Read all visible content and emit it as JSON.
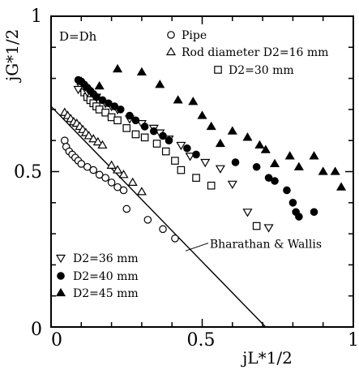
{
  "chart_data": {
    "type": "scatter",
    "xlabel": "jL*1/2",
    "ylabel": "jG*1/2",
    "xlim": [
      0,
      1
    ],
    "ylim": [
      0,
      1
    ],
    "x_ticks": [
      {
        "value": 0,
        "label": "0"
      },
      {
        "value": 0.5,
        "label": "0.5"
      },
      {
        "value": 1,
        "label": "1"
      }
    ],
    "y_ticks": [
      {
        "value": 0,
        "label": "0"
      },
      {
        "value": 0.5,
        "label": "0.5"
      },
      {
        "value": 1,
        "label": "1"
      }
    ],
    "origin_label": "0",
    "condition_text": "D=Dh",
    "grid": false,
    "legend_top": "top-right",
    "legend_bottom": "bottom-left",
    "series": [
      {
        "name": "Pipe",
        "marker": "circle-open",
        "x": [
          0.045,
          0.05,
          0.06,
          0.07,
          0.08,
          0.09,
          0.1,
          0.12,
          0.14,
          0.16,
          0.18,
          0.2,
          0.22,
          0.24,
          0.25,
          0.32,
          0.37,
          0.41
        ],
        "y": [
          0.6,
          0.58,
          0.565,
          0.555,
          0.545,
          0.535,
          0.525,
          0.515,
          0.505,
          0.49,
          0.48,
          0.465,
          0.45,
          0.44,
          0.38,
          0.345,
          0.315,
          0.285
        ]
      },
      {
        "name": "Rod diameter D2=16 mm",
        "marker": "triangle-open",
        "x": [
          0.045,
          0.055,
          0.065,
          0.075,
          0.085,
          0.095,
          0.105,
          0.115,
          0.125,
          0.14,
          0.155,
          0.17,
          0.2,
          0.22,
          0.24,
          0.27,
          0.3
        ],
        "y": [
          0.69,
          0.68,
          0.67,
          0.66,
          0.655,
          0.645,
          0.635,
          0.625,
          0.615,
          0.605,
          0.595,
          0.585,
          0.52,
          0.505,
          0.49,
          0.465,
          0.435
        ]
      },
      {
        "name": "D2=30 mm",
        "marker": "square-open",
        "x": [
          0.1,
          0.11,
          0.12,
          0.13,
          0.14,
          0.15,
          0.16,
          0.18,
          0.2,
          0.22,
          0.25,
          0.28,
          0.31,
          0.35,
          0.38,
          0.41,
          0.43,
          0.48,
          0.53,
          0.68
        ],
        "y": [
          0.77,
          0.755,
          0.74,
          0.73,
          0.72,
          0.71,
          0.7,
          0.69,
          0.675,
          0.665,
          0.64,
          0.62,
          0.61,
          0.59,
          0.565,
          0.535,
          0.505,
          0.48,
          0.455,
          0.325
        ]
      },
      {
        "name": "D2=36 mm",
        "marker": "triangle-down-open",
        "x": [
          0.09,
          0.12,
          0.15,
          0.18,
          0.2,
          0.22,
          0.26,
          0.3,
          0.34,
          0.36,
          0.39,
          0.43,
          0.46,
          0.51,
          0.56,
          0.6,
          0.65,
          0.72
        ],
        "y": [
          0.765,
          0.755,
          0.74,
          0.72,
          0.71,
          0.7,
          0.67,
          0.655,
          0.64,
          0.625,
          0.605,
          0.585,
          0.55,
          0.53,
          0.51,
          0.46,
          0.37,
          0.32
        ]
      },
      {
        "name": "D2=40 mm",
        "marker": "circle-filled",
        "x": [
          0.09,
          0.1,
          0.11,
          0.12,
          0.13,
          0.14,
          0.15,
          0.17,
          0.19,
          0.21,
          0.23,
          0.26,
          0.28,
          0.31,
          0.34,
          0.37,
          0.39,
          0.45,
          0.48,
          0.61,
          0.68,
          0.72,
          0.74,
          0.78,
          0.8,
          0.81,
          0.82,
          0.87
        ],
        "y": [
          0.795,
          0.79,
          0.78,
          0.77,
          0.76,
          0.75,
          0.74,
          0.73,
          0.72,
          0.71,
          0.7,
          0.68,
          0.665,
          0.645,
          0.63,
          0.615,
          0.6,
          0.575,
          0.555,
          0.53,
          0.515,
          0.48,
          0.47,
          0.44,
          0.4,
          0.37,
          0.355,
          0.37
        ]
      },
      {
        "name": "D2=45 mm",
        "marker": "triangle-filled",
        "x": [
          0.1,
          0.16,
          0.22,
          0.3,
          0.36,
          0.42,
          0.47,
          0.5,
          0.53,
          0.56,
          0.6,
          0.65,
          0.69,
          0.71,
          0.74,
          0.79,
          0.82,
          0.87,
          0.9,
          0.94,
          0.96
        ],
        "y": [
          0.79,
          0.775,
          0.83,
          0.82,
          0.78,
          0.73,
          0.725,
          0.68,
          0.645,
          0.59,
          0.63,
          0.61,
          0.585,
          0.57,
          0.525,
          0.55,
          0.515,
          0.55,
          0.5,
          0.5,
          0.45
        ]
      }
    ],
    "annotations": [
      {
        "type": "line",
        "name": "Bharathan & Wallis",
        "x": [
          0,
          0.71
        ],
        "y": [
          0.71,
          0
        ]
      }
    ]
  }
}
